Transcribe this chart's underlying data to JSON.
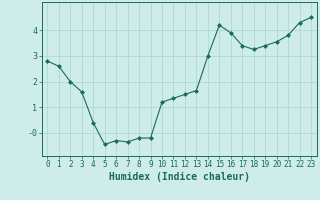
{
  "x": [
    0,
    1,
    2,
    3,
    4,
    5,
    6,
    7,
    8,
    9,
    10,
    11,
    12,
    13,
    14,
    15,
    16,
    17,
    18,
    19,
    20,
    21,
    22,
    23
  ],
  "y": [
    2.8,
    2.6,
    2.0,
    1.6,
    0.4,
    -0.45,
    -0.3,
    -0.35,
    -0.2,
    -0.2,
    1.2,
    1.35,
    1.5,
    1.65,
    3.0,
    4.2,
    3.9,
    3.4,
    3.25,
    3.4,
    3.55,
    3.8,
    4.3,
    4.5
  ],
  "line_color": "#1a6b5a",
  "marker": "D",
  "marker_size": 2.0,
  "bg_color": "#ceecea",
  "grid_color": "#b0d8d4",
  "xlabel": "Humidex (Indice chaleur)",
  "xlabel_fontsize": 7,
  "tick_fontsize": 5.5,
  "yticks": [
    0,
    1,
    2,
    3,
    4
  ],
  "ytick_labels": [
    "-0",
    "1",
    "2",
    "3",
    "4"
  ],
  "ylim": [
    -0.9,
    5.1
  ],
  "xlim": [
    -0.5,
    23.5
  ],
  "xticks": [
    0,
    1,
    2,
    3,
    4,
    5,
    6,
    7,
    8,
    9,
    10,
    11,
    12,
    13,
    14,
    15,
    16,
    17,
    18,
    19,
    20,
    21,
    22,
    23
  ]
}
